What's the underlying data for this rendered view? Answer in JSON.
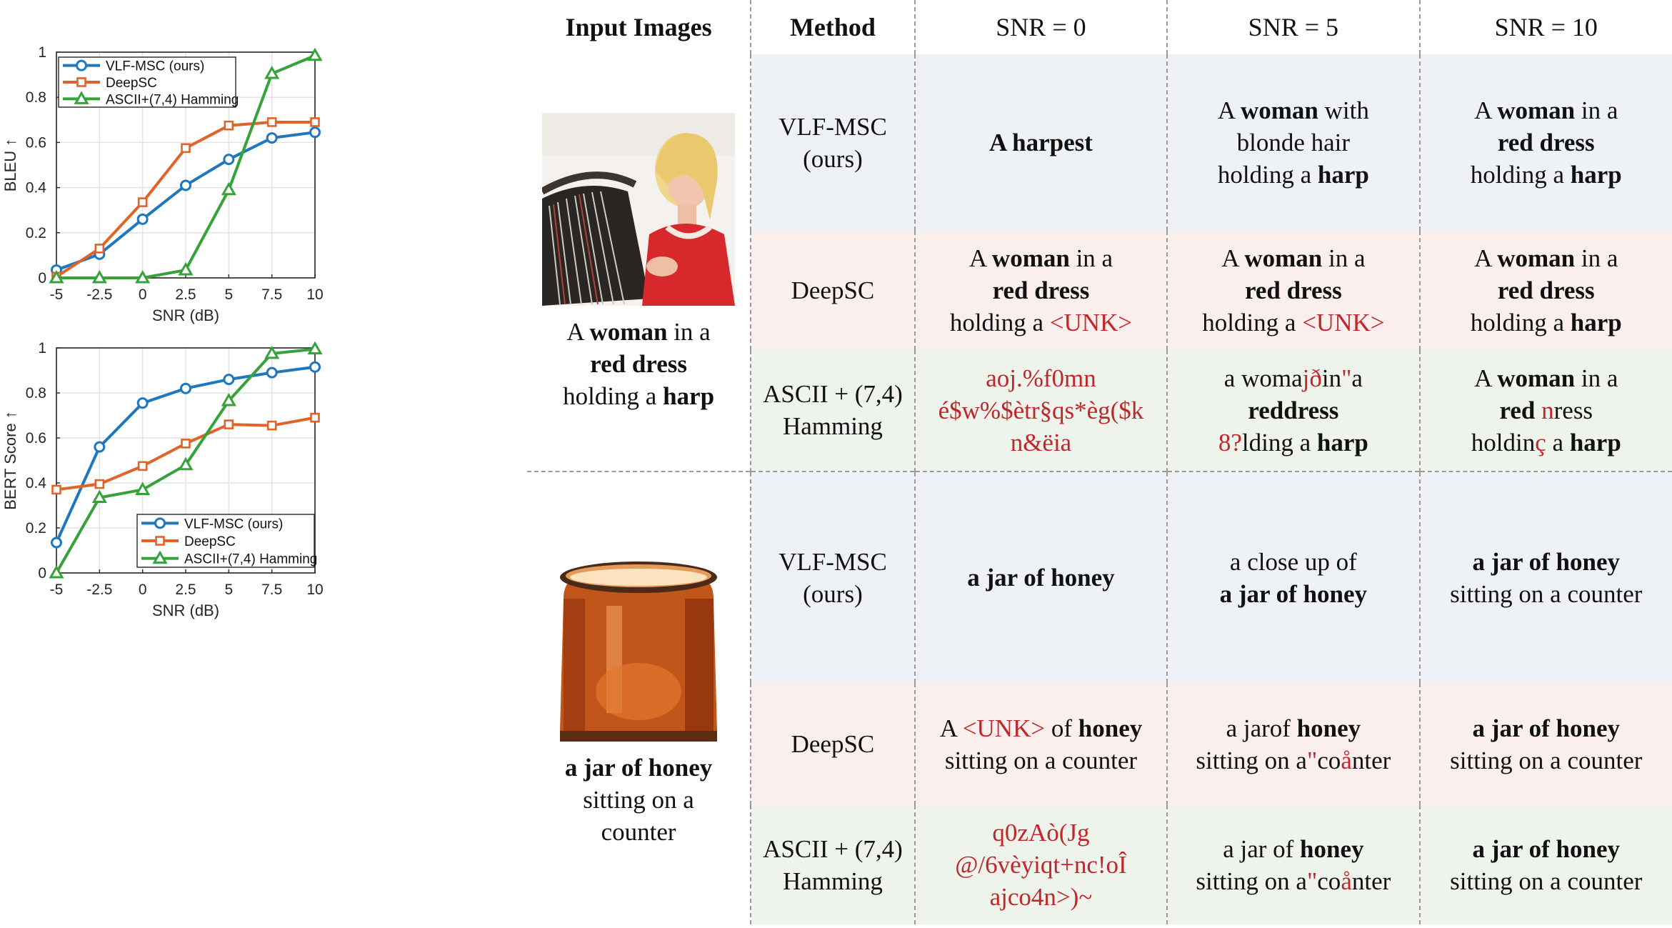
{
  "chart_data": [
    {
      "type": "line",
      "title": "",
      "xlabel": "SNR (dB)",
      "ylabel": "BLEU ↑",
      "x": [
        -5,
        -2.5,
        0,
        2.5,
        5,
        7.5,
        10
      ],
      "x_tick_labels": [
        "-5",
        "-2.5",
        "0",
        "2.5",
        "5",
        "7.5",
        "10"
      ],
      "y_tick_labels": [
        "0",
        "0.2",
        "0.4",
        "0.6",
        "0.8",
        "1"
      ],
      "xlim": [
        -5,
        10
      ],
      "ylim": [
        0,
        1
      ],
      "grid": true,
      "legend_position": "top-left",
      "series": [
        {
          "name": "VLF-MSC (ours)",
          "color": "#1f77bd",
          "marker": "circle",
          "values": [
            0.035,
            0.105,
            0.26,
            0.41,
            0.525,
            0.62,
            0.645
          ]
        },
        {
          "name": "DeepSC",
          "color": "#e0642a",
          "marker": "square",
          "values": [
            0.005,
            0.13,
            0.335,
            0.575,
            0.675,
            0.69,
            0.69
          ]
        },
        {
          "name": "ASCII+(7,4) Hamming",
          "color": "#35a23a",
          "marker": "triangle",
          "values": [
            0.0,
            0.0,
            0.0,
            0.035,
            0.39,
            0.905,
            0.985
          ]
        }
      ]
    },
    {
      "type": "line",
      "title": "",
      "xlabel": "SNR (dB)",
      "ylabel": "BERT Score ↑",
      "x": [
        -5,
        -2.5,
        0,
        2.5,
        5,
        7.5,
        10
      ],
      "x_tick_labels": [
        "-5",
        "-2.5",
        "0",
        "2.5",
        "5",
        "7.5",
        "10"
      ],
      "y_tick_labels": [
        "0",
        "0.2",
        "0.4",
        "0.6",
        "0.8",
        "1"
      ],
      "xlim": [
        -5,
        10
      ],
      "ylim": [
        0,
        1
      ],
      "grid": true,
      "legend_position": "bottom-right",
      "series": [
        {
          "name": "VLF-MSC (ours)",
          "color": "#1f77bd",
          "marker": "circle",
          "values": [
            0.135,
            0.56,
            0.755,
            0.82,
            0.86,
            0.89,
            0.915
          ]
        },
        {
          "name": "DeepSC",
          "color": "#e0642a",
          "marker": "square",
          "values": [
            0.37,
            0.395,
            0.475,
            0.575,
            0.66,
            0.655,
            0.69
          ]
        },
        {
          "name": "ASCII+(7,4) Hamming",
          "color": "#35a23a",
          "marker": "triangle",
          "values": [
            0.0,
            0.335,
            0.37,
            0.48,
            0.765,
            0.975,
            0.995
          ]
        }
      ]
    }
  ],
  "table": {
    "headers": [
      "Input Images",
      "Method",
      "SNR = 0",
      "SNR = 5",
      "SNR = 10"
    ],
    "groups": [
      {
        "image_icon": "woman-playing-harp-photo",
        "caption": [
          {
            "t": "A "
          },
          {
            "t": "woman",
            "b": true
          },
          {
            "t": " in a "
          },
          {
            "br": true
          },
          {
            "t": "red dress",
            "b": true
          },
          {
            "br": true
          },
          {
            "t": "holding a "
          },
          {
            "t": "harp",
            "b": true
          }
        ],
        "rows": [
          {
            "method": "VLF-MSC\n(ours)",
            "bg": "v",
            "cells": [
              [
                {
                  "t": "A harpest",
                  "b": true
                }
              ],
              [
                {
                  "t": "A "
                },
                {
                  "t": "woman",
                  "b": true
                },
                {
                  "t": " with"
                },
                {
                  "br": true
                },
                {
                  "t": "blonde hair"
                },
                {
                  "br": true
                },
                {
                  "t": "holding a "
                },
                {
                  "t": "harp",
                  "b": true
                }
              ],
              [
                {
                  "t": "A "
                },
                {
                  "t": "woman",
                  "b": true
                },
                {
                  "t": " in a"
                },
                {
                  "br": true
                },
                {
                  "t": "red dress",
                  "b": true
                },
                {
                  "br": true
                },
                {
                  "t": "holding a "
                },
                {
                  "t": "harp",
                  "b": true
                }
              ]
            ]
          },
          {
            "method": "DeepSC",
            "bg": "d",
            "cells": [
              [
                {
                  "t": "A "
                },
                {
                  "t": "woman",
                  "b": true
                },
                {
                  "t": " in a"
                },
                {
                  "br": true
                },
                {
                  "t": "red dress",
                  "b": true
                },
                {
                  "br": true
                },
                {
                  "t": "holding a "
                },
                {
                  "t": "<UNK>",
                  "r": true
                }
              ],
              [
                {
                  "t": "A "
                },
                {
                  "t": "woman",
                  "b": true
                },
                {
                  "t": " in a"
                },
                {
                  "br": true
                },
                {
                  "t": "red dress",
                  "b": true
                },
                {
                  "br": true
                },
                {
                  "t": "holding a "
                },
                {
                  "t": "<UNK>",
                  "r": true
                }
              ],
              [
                {
                  "t": "A "
                },
                {
                  "t": "woman",
                  "b": true
                },
                {
                  "t": " in a"
                },
                {
                  "br": true
                },
                {
                  "t": "red dress",
                  "b": true
                },
                {
                  "br": true
                },
                {
                  "t": "holding a "
                },
                {
                  "t": "harp",
                  "b": true
                }
              ]
            ]
          },
          {
            "method": "ASCII + (7,4)\nHamming",
            "bg": "a",
            "cells": [
              [
                {
                  "t": "aoj.%f0mn",
                  "r": true
                },
                {
                  "br": true
                },
                {
                  "t": "é$w%$ètr§qs*èg($k",
                  "r": true
                },
                {
                  "br": true
                },
                {
                  "t": "n&ëia",
                  "r": true
                }
              ],
              [
                {
                  "t": "a woma"
                },
                {
                  "t": "jð",
                  "r": true
                },
                {
                  "t": "in"
                },
                {
                  "t": "\"",
                  "r": true
                },
                {
                  "t": "a"
                },
                {
                  "br": true
                },
                {
                  "t": "reddress",
                  "b": true
                },
                {
                  "br": true
                },
                {
                  "t": "8?",
                  "r": true
                },
                {
                  "t": "lding a "
                },
                {
                  "t": "harp",
                  "b": true
                }
              ],
              [
                {
                  "t": "A "
                },
                {
                  "t": "woman",
                  "b": true
                },
                {
                  "t": " in a"
                },
                {
                  "br": true
                },
                {
                  "t": "red",
                  "b": true
                },
                {
                  "t": " "
                },
                {
                  "t": "n",
                  "r": true
                },
                {
                  "t": "ress"
                },
                {
                  "br": true
                },
                {
                  "t": "holdin"
                },
                {
                  "t": "ç",
                  "r": true
                },
                {
                  "t": " a "
                },
                {
                  "t": "harp",
                  "b": true
                }
              ]
            ]
          }
        ]
      },
      {
        "image_icon": "jar-of-honey-photo",
        "caption": [
          {
            "t": "a jar of honey",
            "b": true
          },
          {
            "br": true
          },
          {
            "t": "sitting on a"
          },
          {
            "br": true
          },
          {
            "t": "counter"
          }
        ],
        "rows": [
          {
            "method": "VLF-MSC\n(ours)",
            "bg": "v",
            "cells": [
              [
                {
                  "t": "a jar of honey",
                  "b": true
                }
              ],
              [
                {
                  "t": "a close up of"
                },
                {
                  "br": true
                },
                {
                  "t": "a jar of honey",
                  "b": true
                }
              ],
              [
                {
                  "t": "a jar of honey",
                  "b": true
                },
                {
                  "br": true
                },
                {
                  "t": "sitting on a counter"
                }
              ]
            ]
          },
          {
            "method": "DeepSC",
            "bg": "d",
            "cells": [
              [
                {
                  "t": "A "
                },
                {
                  "t": "<UNK>",
                  "r": true
                },
                {
                  "t": " of "
                },
                {
                  "t": "honey",
                  "b": true
                },
                {
                  "br": true
                },
                {
                  "t": "sitting on a counter"
                }
              ],
              [
                {
                  "t": "a jarof "
                },
                {
                  "t": "honey",
                  "b": true
                },
                {
                  "br": true
                },
                {
                  "t": "sitting on a"
                },
                {
                  "t": "\"",
                  "r": true
                },
                {
                  "t": "co"
                },
                {
                  "t": "å",
                  "r": true
                },
                {
                  "t": "nter"
                }
              ],
              [
                {
                  "t": "a jar of honey",
                  "b": true
                },
                {
                  "br": true
                },
                {
                  "t": "sitting on a counter"
                }
              ]
            ]
          },
          {
            "method": "ASCII + (7,4)\nHamming",
            "bg": "a",
            "cells": [
              [
                {
                  "t": "q0zAò(Jg",
                  "r": true
                },
                {
                  "br": true
                },
                {
                  "t": "@/6vèyiqt+nc!oÎ",
                  "r": true
                },
                {
                  "br": true
                },
                {
                  "t": "ajco4n>)~",
                  "r": true
                }
              ],
              [
                {
                  "t": "a jar of "
                },
                {
                  "t": "honey",
                  "b": true
                },
                {
                  "br": true
                },
                {
                  "t": "sitting on a"
                },
                {
                  "t": "\"",
                  "r": true
                },
                {
                  "t": "co"
                },
                {
                  "t": "å",
                  "r": true
                },
                {
                  "t": "nter"
                }
              ],
              [
                {
                  "t": "a jar of honey",
                  "b": true
                },
                {
                  "br": true
                },
                {
                  "t": "sitting on a counter"
                }
              ]
            ]
          }
        ]
      }
    ]
  }
}
